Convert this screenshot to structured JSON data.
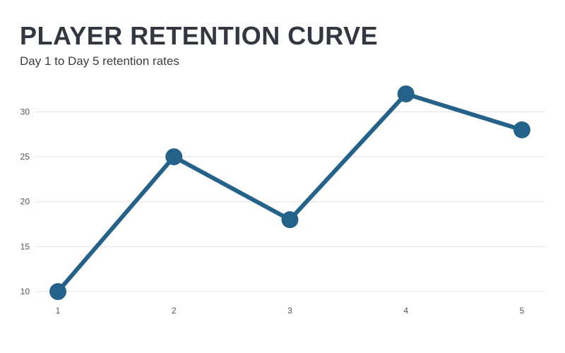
{
  "chart_data": {
    "type": "line",
    "title": "PLAYER RETENTION CURVE",
    "subtitle": "Day 1 to Day 5 retention rates",
    "xlabel": "",
    "ylabel": "",
    "x": [
      1,
      2,
      3,
      4,
      5
    ],
    "series": [
      {
        "values": [
          10,
          25,
          18,
          32,
          28
        ]
      }
    ],
    "x_tick_labels": [
      "1",
      "2",
      "3",
      "4",
      "5"
    ],
    "y_ticks": [
      10,
      15,
      20,
      25,
      30
    ],
    "y_tick_labels": [
      "10",
      "15",
      "20",
      "25",
      "30"
    ],
    "ylim": [
      10,
      32
    ],
    "grid": "horizontal",
    "legend": "none",
    "line_color": "#25628a",
    "grid_color": "#e3e3e3"
  }
}
